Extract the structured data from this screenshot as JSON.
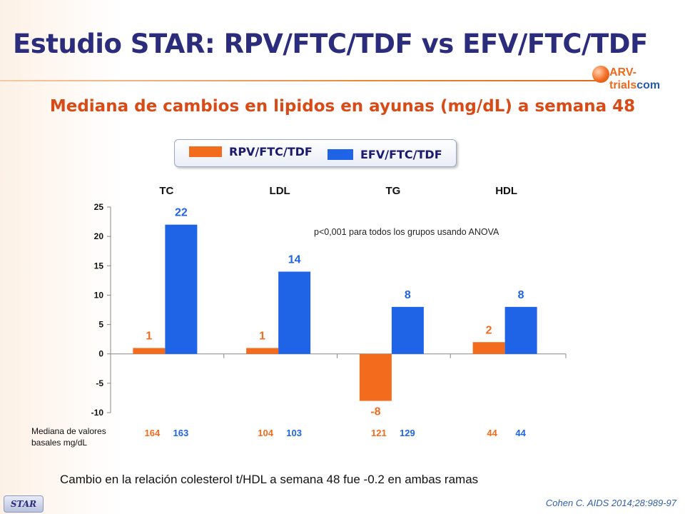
{
  "header": {
    "title": "Estudio STAR: RPV/FTC/TDF vs EFV/FTC/TDF",
    "logo_text_prefix": "ARV-trials",
    "logo_text_suffix": "com"
  },
  "subtitle": "Mediana  de cambios en lipidos en ayunas (mg/dL) a semana 48",
  "legend": {
    "items": [
      {
        "label": "RPV/FTC/TDF",
        "color": "#f36b1c"
      },
      {
        "label": "EFV/FTC/TDF",
        "color": "#1f63e6"
      }
    ]
  },
  "chart_data": {
    "type": "bar",
    "categories": [
      "TC",
      "LDL",
      "TG",
      "HDL"
    ],
    "series": [
      {
        "name": "RPV/FTC/TDF",
        "values": [
          1,
          1,
          -8,
          2
        ],
        "labels": [
          "1",
          "1",
          "-8",
          "2"
        ],
        "color": "#f36b1c"
      },
      {
        "name": "EFV/FTC/TDF",
        "values": [
          22,
          14,
          8,
          8
        ],
        "labels": [
          "22",
          "14",
          "8",
          "8"
        ],
        "color": "#1f63e6"
      }
    ],
    "ylim": [
      -10,
      25
    ],
    "yticks": [
      25,
      20,
      15,
      10,
      5,
      0,
      -5,
      -10
    ],
    "ytick_labels": [
      "25",
      "20",
      "15",
      "10",
      "5",
      "0",
      "-5",
      "-10"
    ],
    "annotation": "p<0,001 para todos los grupos usando ANOVA",
    "baseline": {
      "caption_line1": "Mediana de valores",
      "caption_line2": "basales mg/dL",
      "values": [
        [
          "164",
          "163"
        ],
        [
          "104",
          "103"
        ],
        [
          "121",
          "129"
        ],
        [
          "44",
          "44"
        ]
      ]
    }
  },
  "footnote": "Cambio  en  la relación colesterol t/HDL a semana 48 fue -0.2 en ambas ramas",
  "citation": "Cohen C. AIDS 2014;28:989-97",
  "badge": "STAR"
}
